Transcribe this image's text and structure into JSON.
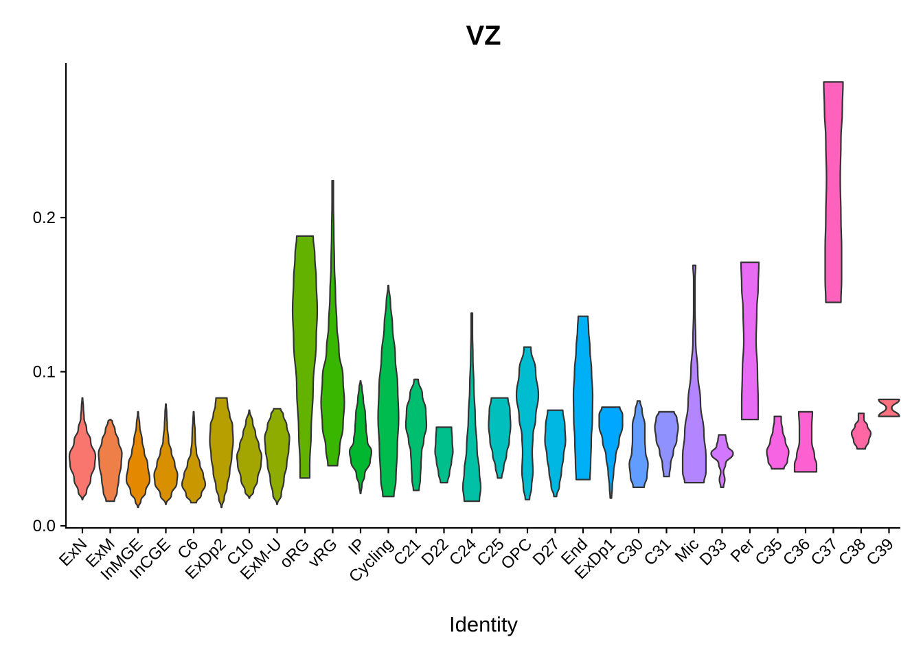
{
  "chart_data": {
    "type": "violin",
    "title": "VZ",
    "xlabel": "Identity",
    "ylabel": "",
    "ylim": [
      0,
      0.295
    ],
    "yticks": [
      0.0,
      0.1,
      0.2
    ],
    "ytick_labels": [
      "0.0",
      "0.1",
      "0.2"
    ],
    "legend": "none",
    "categories": [
      {
        "name": "ExN",
        "color": "#F8766D",
        "min": 0.017,
        "max": 0.083,
        "profile": [
          [
            0.017,
            0.0
          ],
          [
            0.022,
            0.3
          ],
          [
            0.03,
            0.6
          ],
          [
            0.04,
            0.9
          ],
          [
            0.045,
            0.95
          ],
          [
            0.055,
            0.6
          ],
          [
            0.063,
            0.3
          ],
          [
            0.07,
            0.12
          ],
          [
            0.077,
            0.07
          ],
          [
            0.083,
            0.0
          ]
        ]
      },
      {
        "name": "ExM",
        "color": "#EF7F49",
        "min": 0.016,
        "max": 0.069,
        "profile": [
          [
            0.016,
            0.3
          ],
          [
            0.022,
            0.5
          ],
          [
            0.03,
            0.62
          ],
          [
            0.04,
            0.8
          ],
          [
            0.047,
            0.85
          ],
          [
            0.055,
            0.6
          ],
          [
            0.062,
            0.35
          ],
          [
            0.068,
            0.15
          ],
          [
            0.069,
            0.0
          ]
        ]
      },
      {
        "name": "InMGE",
        "color": "#E48800",
        "min": 0.012,
        "max": 0.074,
        "profile": [
          [
            0.012,
            0.0
          ],
          [
            0.016,
            0.2
          ],
          [
            0.022,
            0.55
          ],
          [
            0.03,
            0.85
          ],
          [
            0.04,
            0.7
          ],
          [
            0.048,
            0.45
          ],
          [
            0.055,
            0.3
          ],
          [
            0.065,
            0.12
          ],
          [
            0.074,
            0.0
          ]
        ]
      },
      {
        "name": "InCGE",
        "color": "#D89000",
        "min": 0.014,
        "max": 0.079,
        "profile": [
          [
            0.014,
            0.0
          ],
          [
            0.02,
            0.4
          ],
          [
            0.028,
            0.8
          ],
          [
            0.033,
            0.85
          ],
          [
            0.04,
            0.65
          ],
          [
            0.048,
            0.4
          ],
          [
            0.055,
            0.2
          ],
          [
            0.065,
            0.1
          ],
          [
            0.073,
            0.06
          ],
          [
            0.079,
            0.0
          ]
        ]
      },
      {
        "name": "C6",
        "color": "#C99800",
        "min": 0.015,
        "max": 0.074,
        "profile": [
          [
            0.015,
            0.2
          ],
          [
            0.02,
            0.55
          ],
          [
            0.027,
            0.85
          ],
          [
            0.033,
            0.7
          ],
          [
            0.04,
            0.45
          ],
          [
            0.048,
            0.2
          ],
          [
            0.055,
            0.12
          ],
          [
            0.062,
            0.1
          ],
          [
            0.068,
            0.05
          ],
          [
            0.074,
            0.0
          ]
        ]
      },
      {
        "name": "ExDp2",
        "color": "#B79F00",
        "min": 0.012,
        "max": 0.083,
        "profile": [
          [
            0.012,
            0.0
          ],
          [
            0.018,
            0.2
          ],
          [
            0.025,
            0.4
          ],
          [
            0.035,
            0.6
          ],
          [
            0.045,
            0.75
          ],
          [
            0.055,
            0.85
          ],
          [
            0.065,
            0.8
          ],
          [
            0.072,
            0.6
          ],
          [
            0.078,
            0.45
          ],
          [
            0.083,
            0.4
          ]
        ]
      },
      {
        "name": "C10",
        "color": "#A3A500",
        "min": 0.018,
        "max": 0.075,
        "profile": [
          [
            0.018,
            0.0
          ],
          [
            0.022,
            0.3
          ],
          [
            0.03,
            0.6
          ],
          [
            0.04,
            0.85
          ],
          [
            0.045,
            0.9
          ],
          [
            0.052,
            0.7
          ],
          [
            0.06,
            0.45
          ],
          [
            0.067,
            0.25
          ],
          [
            0.075,
            0.0
          ]
        ]
      },
      {
        "name": "ExM-U",
        "color": "#8EAB00",
        "min": 0.014,
        "max": 0.076,
        "profile": [
          [
            0.014,
            0.0
          ],
          [
            0.02,
            0.3
          ],
          [
            0.03,
            0.5
          ],
          [
            0.04,
            0.7
          ],
          [
            0.05,
            0.85
          ],
          [
            0.057,
            0.9
          ],
          [
            0.065,
            0.7
          ],
          [
            0.072,
            0.45
          ],
          [
            0.076,
            0.25
          ]
        ]
      },
      {
        "name": "oRG",
        "color": "#64B200",
        "min": 0.031,
        "max": 0.188,
        "profile": [
          [
            0.031,
            0.35
          ],
          [
            0.04,
            0.35
          ],
          [
            0.06,
            0.45
          ],
          [
            0.09,
            0.6
          ],
          [
            0.12,
            0.82
          ],
          [
            0.14,
            0.9
          ],
          [
            0.16,
            0.82
          ],
          [
            0.175,
            0.72
          ],
          [
            0.188,
            0.6
          ]
        ]
      },
      {
        "name": "vRG",
        "color": "#39B600",
        "min": 0.039,
        "max": 0.224,
        "profile": [
          [
            0.039,
            0.35
          ],
          [
            0.05,
            0.5
          ],
          [
            0.065,
            0.75
          ],
          [
            0.08,
            0.85
          ],
          [
            0.095,
            0.75
          ],
          [
            0.115,
            0.45
          ],
          [
            0.13,
            0.3
          ],
          [
            0.15,
            0.2
          ],
          [
            0.17,
            0.12
          ],
          [
            0.19,
            0.08
          ],
          [
            0.21,
            0.05
          ],
          [
            0.224,
            0.05
          ]
        ]
      },
      {
        "name": "IP",
        "color": "#00B72F",
        "min": 0.021,
        "max": 0.094,
        "profile": [
          [
            0.021,
            0.0
          ],
          [
            0.026,
            0.1
          ],
          [
            0.033,
            0.3
          ],
          [
            0.042,
            0.7
          ],
          [
            0.048,
            0.8
          ],
          [
            0.055,
            0.5
          ],
          [
            0.063,
            0.4
          ],
          [
            0.072,
            0.35
          ],
          [
            0.082,
            0.2
          ],
          [
            0.09,
            0.1
          ],
          [
            0.094,
            0.0
          ]
        ]
      },
      {
        "name": "Cycling",
        "color": "#00BB4E",
        "min": 0.019,
        "max": 0.156,
        "profile": [
          [
            0.019,
            0.4
          ],
          [
            0.03,
            0.55
          ],
          [
            0.05,
            0.65
          ],
          [
            0.07,
            0.75
          ],
          [
            0.09,
            0.68
          ],
          [
            0.11,
            0.5
          ],
          [
            0.13,
            0.3
          ],
          [
            0.145,
            0.15
          ],
          [
            0.156,
            0.0
          ]
        ]
      },
      {
        "name": "C21",
        "color": "#00BE70",
        "min": 0.023,
        "max": 0.095,
        "profile": [
          [
            0.023,
            0.2
          ],
          [
            0.03,
            0.3
          ],
          [
            0.04,
            0.35
          ],
          [
            0.048,
            0.4
          ],
          [
            0.055,
            0.55
          ],
          [
            0.065,
            0.75
          ],
          [
            0.075,
            0.7
          ],
          [
            0.085,
            0.45
          ],
          [
            0.095,
            0.15
          ]
        ]
      },
      {
        "name": "D22",
        "color": "#00BF8C",
        "min": 0.028,
        "max": 0.064,
        "profile": [
          [
            0.028,
            0.25
          ],
          [
            0.034,
            0.4
          ],
          [
            0.042,
            0.55
          ],
          [
            0.048,
            0.65
          ],
          [
            0.055,
            0.6
          ],
          [
            0.064,
            0.55
          ]
        ]
      },
      {
        "name": "C24",
        "color": "#00C0A5",
        "min": 0.016,
        "max": 0.138,
        "profile": [
          [
            0.016,
            0.55
          ],
          [
            0.025,
            0.65
          ],
          [
            0.035,
            0.55
          ],
          [
            0.05,
            0.38
          ],
          [
            0.07,
            0.25
          ],
          [
            0.09,
            0.15
          ],
          [
            0.11,
            0.08
          ],
          [
            0.125,
            0.05
          ],
          [
            0.138,
            0.05
          ]
        ]
      },
      {
        "name": "C25",
        "color": "#00BFBC",
        "min": 0.031,
        "max": 0.083,
        "profile": [
          [
            0.031,
            0.15
          ],
          [
            0.038,
            0.3
          ],
          [
            0.046,
            0.5
          ],
          [
            0.055,
            0.7
          ],
          [
            0.065,
            0.8
          ],
          [
            0.075,
            0.75
          ],
          [
            0.083,
            0.6
          ]
        ]
      },
      {
        "name": "OPC",
        "color": "#00BCD1",
        "min": 0.017,
        "max": 0.116,
        "profile": [
          [
            0.017,
            0.15
          ],
          [
            0.025,
            0.3
          ],
          [
            0.035,
            0.4
          ],
          [
            0.048,
            0.35
          ],
          [
            0.058,
            0.4
          ],
          [
            0.07,
            0.6
          ],
          [
            0.085,
            0.8
          ],
          [
            0.1,
            0.6
          ],
          [
            0.116,
            0.25
          ]
        ]
      },
      {
        "name": "D27",
        "color": "#00B7E4",
        "min": 0.019,
        "max": 0.075,
        "profile": [
          [
            0.019,
            0.1
          ],
          [
            0.026,
            0.3
          ],
          [
            0.035,
            0.45
          ],
          [
            0.045,
            0.6
          ],
          [
            0.055,
            0.75
          ],
          [
            0.065,
            0.7
          ],
          [
            0.075,
            0.55
          ]
        ]
      },
      {
        "name": "End",
        "color": "#00B0F6",
        "min": 0.03,
        "max": 0.136,
        "profile": [
          [
            0.03,
            0.5
          ],
          [
            0.04,
            0.55
          ],
          [
            0.055,
            0.6
          ],
          [
            0.07,
            0.68
          ],
          [
            0.085,
            0.7
          ],
          [
            0.1,
            0.62
          ],
          [
            0.115,
            0.5
          ],
          [
            0.128,
            0.4
          ],
          [
            0.136,
            0.35
          ]
        ]
      },
      {
        "name": "ExDp1",
        "color": "#00A7FF",
        "min": 0.018,
        "max": 0.077,
        "profile": [
          [
            0.018,
            0.05
          ],
          [
            0.025,
            0.1
          ],
          [
            0.035,
            0.2
          ],
          [
            0.045,
            0.35
          ],
          [
            0.055,
            0.6
          ],
          [
            0.065,
            0.85
          ],
          [
            0.072,
            0.85
          ],
          [
            0.077,
            0.65
          ]
        ]
      },
      {
        "name": "C30",
        "color": "#619CFF",
        "min": 0.025,
        "max": 0.081,
        "profile": [
          [
            0.025,
            0.4
          ],
          [
            0.032,
            0.6
          ],
          [
            0.04,
            0.68
          ],
          [
            0.048,
            0.5
          ],
          [
            0.055,
            0.45
          ],
          [
            0.065,
            0.45
          ],
          [
            0.075,
            0.25
          ],
          [
            0.081,
            0.1
          ]
        ]
      },
      {
        "name": "C31",
        "color": "#8F91FF",
        "min": 0.032,
        "max": 0.074,
        "profile": [
          [
            0.032,
            0.2
          ],
          [
            0.04,
            0.3
          ],
          [
            0.048,
            0.5
          ],
          [
            0.056,
            0.75
          ],
          [
            0.064,
            0.85
          ],
          [
            0.07,
            0.75
          ],
          [
            0.074,
            0.55
          ]
        ]
      },
      {
        "name": "Mic",
        "color": "#B385FF",
        "min": 0.028,
        "max": 0.169,
        "profile": [
          [
            0.028,
            0.7
          ],
          [
            0.035,
            0.85
          ],
          [
            0.045,
            0.85
          ],
          [
            0.06,
            0.7
          ],
          [
            0.08,
            0.45
          ],
          [
            0.1,
            0.25
          ],
          [
            0.12,
            0.1
          ],
          [
            0.14,
            0.05
          ],
          [
            0.16,
            0.05
          ],
          [
            0.169,
            0.1
          ]
        ]
      },
      {
        "name": "D33",
        "color": "#D277FF",
        "min": 0.025,
        "max": 0.059,
        "profile": [
          [
            0.025,
            0.1
          ],
          [
            0.03,
            0.2
          ],
          [
            0.035,
            0.1
          ],
          [
            0.04,
            0.25
          ],
          [
            0.047,
            0.8
          ],
          [
            0.052,
            0.4
          ],
          [
            0.056,
            0.3
          ],
          [
            0.059,
            0.25
          ]
        ]
      },
      {
        "name": "Per",
        "color": "#E76BF3",
        "min": 0.069,
        "max": 0.171,
        "profile": [
          [
            0.069,
            0.6
          ],
          [
            0.08,
            0.6
          ],
          [
            0.1,
            0.55
          ],
          [
            0.12,
            0.45
          ],
          [
            0.14,
            0.5
          ],
          [
            0.155,
            0.6
          ],
          [
            0.171,
            0.65
          ]
        ]
      },
      {
        "name": "C35",
        "color": "#F663E3",
        "min": 0.037,
        "max": 0.071,
        "profile": [
          [
            0.037,
            0.45
          ],
          [
            0.042,
            0.7
          ],
          [
            0.048,
            0.8
          ],
          [
            0.055,
            0.55
          ],
          [
            0.062,
            0.35
          ],
          [
            0.068,
            0.25
          ],
          [
            0.071,
            0.25
          ]
        ]
      },
      {
        "name": "C36",
        "color": "#FD61D1",
        "min": 0.035,
        "max": 0.074,
        "profile": [
          [
            0.035,
            0.8
          ],
          [
            0.04,
            0.8
          ],
          [
            0.045,
            0.65
          ],
          [
            0.055,
            0.45
          ],
          [
            0.065,
            0.45
          ],
          [
            0.074,
            0.5
          ]
        ]
      },
      {
        "name": "C37",
        "color": "#FF62BC",
        "min": 0.145,
        "max": 0.288,
        "profile": [
          [
            0.145,
            0.55
          ],
          [
            0.16,
            0.6
          ],
          [
            0.18,
            0.6
          ],
          [
            0.2,
            0.55
          ],
          [
            0.225,
            0.5
          ],
          [
            0.25,
            0.55
          ],
          [
            0.27,
            0.65
          ],
          [
            0.288,
            0.7
          ]
        ]
      },
      {
        "name": "C38",
        "color": "#FF67A4",
        "min": 0.05,
        "max": 0.073,
        "profile": [
          [
            0.05,
            0.3
          ],
          [
            0.055,
            0.55
          ],
          [
            0.06,
            0.7
          ],
          [
            0.065,
            0.45
          ],
          [
            0.069,
            0.2
          ],
          [
            0.073,
            0.2
          ]
        ]
      },
      {
        "name": "C39",
        "color": "#FC717F",
        "min": 0.071,
        "max": 0.082,
        "profile": [
          [
            0.071,
            0.75
          ],
          [
            0.0765,
            0.2
          ],
          [
            0.082,
            0.75
          ]
        ]
      }
    ]
  }
}
